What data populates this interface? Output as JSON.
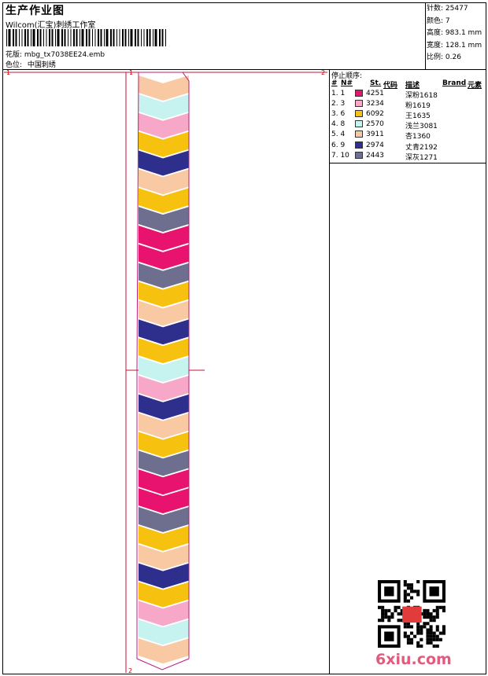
{
  "header": {
    "title": "生产作业图",
    "studio": "Wilcom(汇宝)刺绣工作室",
    "file_label": "花版:",
    "file_name": "mbg_tx7038EE24.emb",
    "position_label": "色位:",
    "position_value": "中国刺绣"
  },
  "stats": {
    "stitches_label": "针数:",
    "stitches": "25477",
    "colors_label": "颜色:",
    "colors": "7",
    "height_label": "高度:",
    "height": "983.1 mm",
    "width_label": "宽度:",
    "width": "128.1 mm",
    "scale_label": "比例:",
    "scale": "0.26"
  },
  "sequence": {
    "title": "停止顺序:",
    "headers": {
      "hash": "#",
      "num": "N#",
      "st": "St.",
      "code": "代码",
      "desc": "描述",
      "brand": "Brand",
      "elements": "元素"
    },
    "rows": [
      {
        "idx": "1. 1",
        "color": "#e8136f",
        "code": "4251",
        "desc": "深粉1618"
      },
      {
        "idx": "2. 3",
        "color": "#f7a8c8",
        "code": "3234",
        "desc": "粉1619"
      },
      {
        "idx": "3. 6",
        "color": "#f7c10f",
        "code": "6092",
        "desc": "王1635"
      },
      {
        "idx": "4. 8",
        "color": "#c6f3f0",
        "code": "2570",
        "desc": "浅兰3081"
      },
      {
        "idx": "5. 4",
        "color": "#f9c9a4",
        "code": "3911",
        "desc": "杏1360"
      },
      {
        "idx": "6. 9",
        "color": "#2e2e8c",
        "code": "2974",
        "desc": "丈青2192"
      },
      {
        "idx": "7. 10",
        "color": "#6e6e8e",
        "code": "2443",
        "desc": "深灰1271"
      }
    ]
  },
  "design": {
    "marker_labels": [
      "1",
      "1",
      "2",
      "2"
    ],
    "band_colors": [
      "peach",
      "cyan",
      "pink",
      "yellow",
      "navy",
      "peach",
      "yellow",
      "gray",
      "magenta",
      "magenta",
      "gray",
      "yellow",
      "peach",
      "navy",
      "yellow",
      "cyan",
      "pink",
      "navy",
      "peach",
      "yellow",
      "gray",
      "magenta",
      "magenta",
      "gray",
      "yellow",
      "peach",
      "navy",
      "yellow",
      "pink",
      "cyan",
      "peach"
    ],
    "palette": {
      "peach": "#f9c9a4",
      "cyan": "#c6f3f0",
      "pink": "#f7a8c8",
      "yellow": "#f7c10f",
      "navy": "#2e2e8c",
      "gray": "#6e6e8e",
      "magenta": "#e8136f"
    }
  },
  "watermark": {
    "text": "6xiu.com",
    "brand_color": "#e25a7c"
  }
}
